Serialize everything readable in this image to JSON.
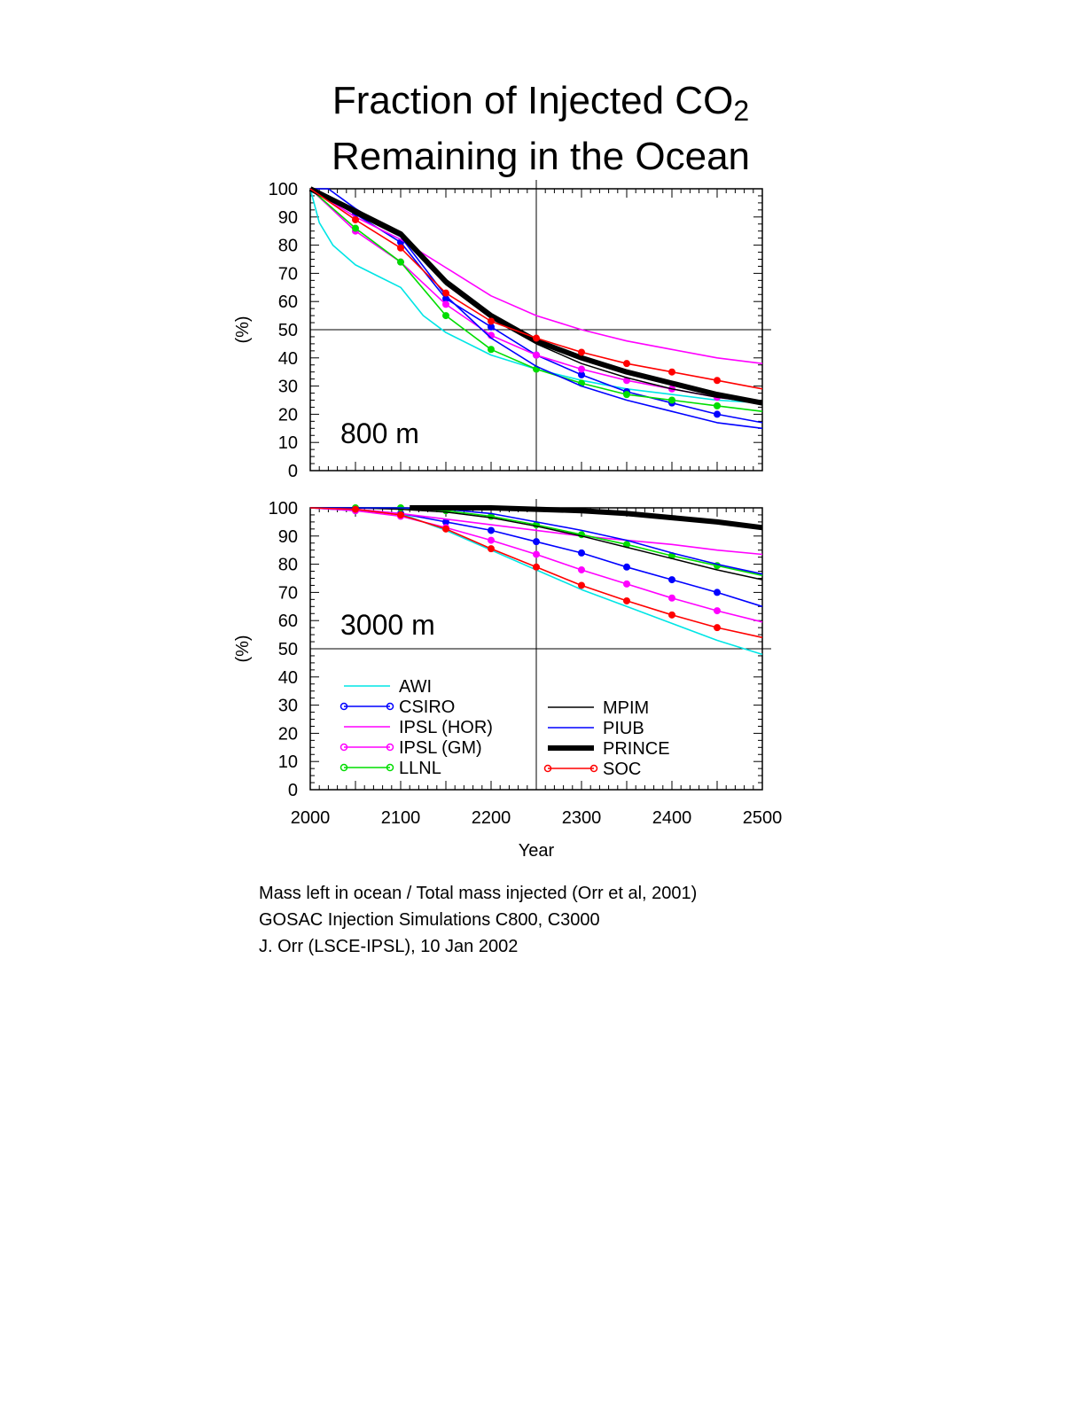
{
  "title": {
    "line1": "Fraction of Injected CO",
    "subscript": "2",
    "line2": "Remaining in the Ocean"
  },
  "notes": [
    "Mass left in ocean / Total mass injected (Orr et al, 2001)",
    "GOSAC Injection Simulations C800, C3000",
    "J. Orr (LSCE-IPSL), 10 Jan 2002"
  ],
  "colors": {
    "AWI": "#00e5e5",
    "CSIRO": "#0000ff",
    "IPSL (HOR)": "#ff00ff",
    "IPSL (GM)": "#ff00ff",
    "LLNL": "#00dd00",
    "MPIM": "#000000",
    "PIUB": "#0000ff",
    "PRINCE": "#000000",
    "SOC": "#ff0000"
  },
  "legend_left": [
    "AWI",
    "CSIRO",
    "IPSL (HOR)",
    "IPSL (GM)",
    "LLNL"
  ],
  "legend_right": [
    "MPIM",
    "PIUB",
    "PRINCE",
    "SOC"
  ],
  "chart_data": [
    {
      "type": "line",
      "panel_label": "800 m",
      "xlabel": "Year",
      "ylabel": "(%)",
      "xlim": [
        2000,
        2500
      ],
      "ylim": [
        0,
        100
      ],
      "xticks": [
        2000,
        2100,
        2200,
        2300,
        2400,
        2500
      ],
      "yticks": [
        0,
        10,
        20,
        30,
        40,
        50,
        60,
        70,
        80,
        90,
        100
      ],
      "reference_lines": {
        "y": 50,
        "x": 2250
      },
      "series": [
        {
          "name": "AWI",
          "x": [
            2000,
            2010,
            2025,
            2050,
            2075,
            2100,
            2125,
            2150,
            2200,
            2250,
            2300,
            2350,
            2400,
            2450,
            2500
          ],
          "y": [
            100,
            88,
            80,
            73,
            69,
            65,
            55,
            49,
            41,
            36,
            32,
            29,
            27,
            25,
            24
          ]
        },
        {
          "name": "CSIRO",
          "x": [
            2000,
            2050,
            2100,
            2150,
            2200,
            2250,
            2300,
            2350,
            2400,
            2450,
            2500
          ],
          "y": [
            100,
            91,
            81,
            61,
            51,
            41,
            34,
            28,
            24,
            20,
            17
          ]
        },
        {
          "name": "IPSL (HOR)",
          "x": [
            2000,
            2050,
            2100,
            2150,
            2200,
            2250,
            2300,
            2350,
            2400,
            2450,
            2500
          ],
          "y": [
            100,
            90,
            82,
            72,
            62,
            55,
            50,
            46,
            43,
            40,
            38
          ]
        },
        {
          "name": "IPSL (GM)",
          "x": [
            2000,
            2050,
            2100,
            2150,
            2200,
            2250,
            2300,
            2350,
            2400,
            2450,
            2500
          ],
          "y": [
            100,
            85,
            74,
            59,
            48,
            41,
            36,
            32,
            29,
            26,
            24
          ]
        },
        {
          "name": "LLNL",
          "x": [
            2000,
            2050,
            2100,
            2150,
            2200,
            2250,
            2300,
            2350,
            2400,
            2450,
            2500
          ],
          "y": [
            100,
            86,
            74,
            55,
            43,
            36,
            31,
            27,
            25,
            23,
            21
          ]
        },
        {
          "name": "MPIM",
          "x": [
            2000,
            2050,
            2100,
            2150,
            2200,
            2250,
            2300,
            2350,
            2400,
            2450,
            2500
          ],
          "y": [
            100,
            91,
            83,
            66,
            54,
            45,
            38,
            33,
            29,
            26,
            24
          ]
        },
        {
          "name": "PIUB",
          "x": [
            2000,
            2020,
            2050,
            2100,
            2150,
            2200,
            2250,
            2300,
            2350,
            2400,
            2450,
            2500
          ],
          "y": [
            100,
            100,
            93,
            83,
            62,
            47,
            37,
            30,
            25,
            21,
            17,
            15
          ]
        },
        {
          "name": "PRINCE",
          "x": [
            2000,
            2050,
            2100,
            2150,
            2200,
            2250,
            2300,
            2350,
            2400,
            2450,
            2500
          ],
          "y": [
            100,
            92,
            84,
            67,
            55,
            46,
            40,
            35,
            31,
            27,
            24
          ]
        },
        {
          "name": "SOC",
          "x": [
            2000,
            2050,
            2100,
            2150,
            2200,
            2250,
            2300,
            2350,
            2400,
            2450,
            2500
          ],
          "y": [
            100,
            89,
            79,
            63,
            53,
            47,
            42,
            38,
            35,
            32,
            29
          ]
        }
      ]
    },
    {
      "type": "line",
      "panel_label": "3000 m",
      "xlabel": "Year",
      "ylabel": "(%)",
      "xlim": [
        2000,
        2500
      ],
      "ylim": [
        0,
        100
      ],
      "xticks": [
        2000,
        2100,
        2200,
        2300,
        2400,
        2500
      ],
      "yticks": [
        0,
        10,
        20,
        30,
        40,
        50,
        60,
        70,
        80,
        90,
        100
      ],
      "reference_lines": {
        "y": 50,
        "x": 2250
      },
      "series": [
        {
          "name": "AWI",
          "x": [
            2000,
            2050,
            2100,
            2150,
            2200,
            2250,
            2300,
            2350,
            2400,
            2450,
            2500
          ],
          "y": [
            100,
            99.5,
            98,
            92,
            85,
            78,
            71,
            65,
            59,
            53,
            48
          ]
        },
        {
          "name": "CSIRO",
          "x": [
            2000,
            2050,
            2100,
            2150,
            2200,
            2250,
            2300,
            2350,
            2400,
            2450,
            2500
          ],
          "y": [
            100,
            99,
            98,
            95,
            92,
            88,
            84,
            79,
            74.5,
            70,
            65
          ]
        },
        {
          "name": "IPSL (HOR)",
          "x": [
            2000,
            2050,
            2100,
            2150,
            2200,
            2250,
            2300,
            2350,
            2400,
            2450,
            2500
          ],
          "y": [
            100,
            99.5,
            98,
            96,
            94,
            92,
            90,
            88.5,
            87,
            85,
            83.5
          ]
        },
        {
          "name": "IPSL (GM)",
          "x": [
            2000,
            2050,
            2100,
            2150,
            2200,
            2250,
            2300,
            2350,
            2400,
            2450,
            2500
          ],
          "y": [
            100,
            99,
            97,
            93,
            88.5,
            83.5,
            78,
            73,
            68,
            63.5,
            59.5
          ]
        },
        {
          "name": "LLNL",
          "x": [
            2000,
            2050,
            2100,
            2150,
            2200,
            2250,
            2300,
            2350,
            2400,
            2450,
            2500
          ],
          "y": [
            100,
            100,
            100,
            99,
            97,
            94,
            90.5,
            87,
            83,
            79.5,
            76
          ]
        },
        {
          "name": "MPIM",
          "x": [
            2000,
            2050,
            2100,
            2150,
            2200,
            2250,
            2300,
            2350,
            2400,
            2450,
            2500
          ],
          "y": [
            100,
            100,
            99.5,
            98.5,
            96.5,
            93.5,
            90,
            86,
            82,
            78,
            74.5
          ]
        },
        {
          "name": "PIUB",
          "x": [
            2000,
            2050,
            2100,
            2150,
            2200,
            2250,
            2300,
            2350,
            2400,
            2450,
            2500
          ],
          "y": [
            100,
            100,
            100,
            99.5,
            98,
            95,
            92,
            88.5,
            84,
            80,
            76.5
          ]
        },
        {
          "name": "PRINCE",
          "x": [
            2110,
            2150,
            2200,
            2250,
            2300,
            2350,
            2400,
            2450,
            2500
          ],
          "y": [
            100,
            100,
            100,
            99.5,
            99,
            98,
            96.5,
            95,
            93
          ]
        },
        {
          "name": "SOC",
          "x": [
            2000,
            2050,
            2100,
            2150,
            2200,
            2250,
            2300,
            2350,
            2400,
            2450,
            2500
          ],
          "y": [
            100,
            99.5,
            97.5,
            92.5,
            85.5,
            79,
            72.5,
            67,
            62,
            57.5,
            54
          ]
        }
      ]
    }
  ]
}
